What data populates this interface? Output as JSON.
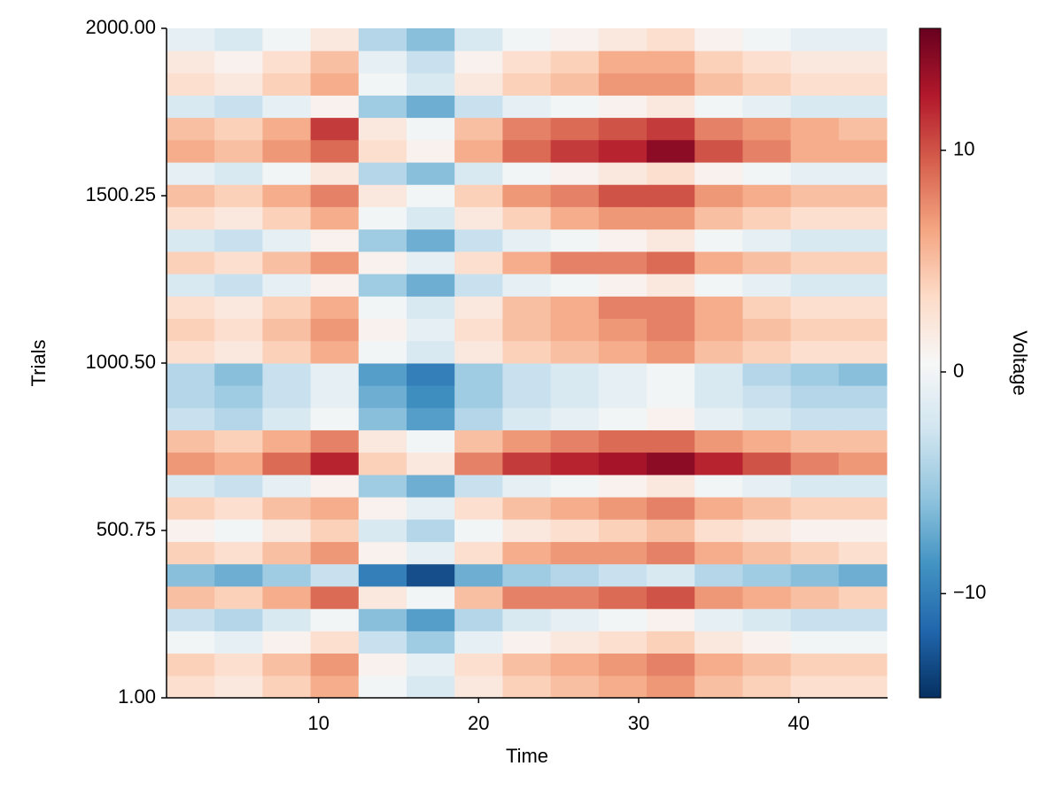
{
  "chart_data": {
    "type": "heatmap",
    "x_label": "Time",
    "y_label": "Trials",
    "colorbar_label": "Voltage",
    "x": [
      2,
      5,
      8,
      11,
      14,
      17,
      20,
      23,
      26,
      29,
      32,
      35,
      38,
      41,
      44
    ],
    "y": [
      34,
      101,
      168,
      234,
      301,
      368,
      434,
      501,
      568,
      634,
      701,
      768,
      834,
      901,
      967,
      1034,
      1101,
      1167,
      1234,
      1301,
      1367,
      1434,
      1501,
      1567,
      1634,
      1701,
      1767,
      1834,
      1900,
      1967
    ],
    "z": [
      [
        3,
        2,
        4,
        6,
        0,
        -2,
        2,
        4,
        5,
        6,
        7,
        5,
        4,
        3,
        3
      ],
      [
        4,
        3,
        5,
        7,
        1,
        -1,
        3,
        5,
        6,
        7,
        8,
        6,
        5,
        4,
        4
      ],
      [
        0,
        -1,
        1,
        3,
        -3,
        -5,
        -1,
        1,
        2,
        3,
        4,
        2,
        1,
        0,
        0
      ],
      [
        -3,
        -4,
        -2,
        0,
        -6,
        -8,
        -4,
        -2,
        -1,
        0,
        1,
        -1,
        -2,
        -3,
        -3
      ],
      [
        5,
        4,
        6,
        9,
        2,
        0,
        5,
        8,
        8,
        9,
        10,
        7,
        6,
        5,
        4
      ],
      [
        -6,
        -7,
        -5,
        -3,
        -10,
        -13,
        -7,
        -5,
        -4,
        -3,
        -2,
        -4,
        -5,
        -6,
        -7
      ],
      [
        4,
        3,
        5,
        7,
        1,
        -1,
        3,
        6,
        7,
        7,
        8,
        6,
        5,
        4,
        3
      ],
      [
        1,
        0,
        2,
        4,
        -2,
        -4,
        0,
        2,
        3,
        4,
        5,
        3,
        2,
        1,
        1
      ],
      [
        4,
        3,
        5,
        6,
        1,
        -1,
        3,
        5,
        6,
        7,
        8,
        6,
        5,
        4,
        4
      ],
      [
        -2,
        -3,
        -1,
        1,
        -5,
        -7,
        -3,
        -1,
        0,
        1,
        2,
        0,
        -1,
        -2,
        -2
      ],
      [
        7,
        6,
        9,
        12,
        4,
        2,
        8,
        11,
        12,
        13,
        14,
        12,
        10,
        8,
        7
      ],
      [
        5,
        4,
        6,
        8,
        2,
        0,
        5,
        7,
        8,
        9,
        9,
        7,
        6,
        5,
        5
      ],
      [
        -3,
        -4,
        -2,
        0,
        -6,
        -8,
        -4,
        -2,
        -1,
        0,
        1,
        -1,
        -2,
        -3,
        -3
      ],
      [
        -4,
        -5,
        -3,
        -1,
        -7,
        -9,
        -5,
        -3,
        -2,
        -1,
        0,
        -2,
        -3,
        -4,
        -4
      ],
      [
        -4,
        -6,
        -3,
        -1,
        -8,
        -10,
        -5,
        -3,
        -2,
        -1,
        0,
        -2,
        -4,
        -5,
        -6
      ],
      [
        3,
        2,
        4,
        6,
        0,
        -2,
        2,
        4,
        5,
        6,
        7,
        5,
        4,
        3,
        3
      ],
      [
        4,
        3,
        5,
        7,
        1,
        -1,
        3,
        5,
        6,
        7,
        8,
        6,
        5,
        4,
        4
      ],
      [
        3,
        2,
        4,
        6,
        0,
        -2,
        2,
        5,
        6,
        8,
        8,
        6,
        4,
        3,
        3
      ],
      [
        -2,
        -3,
        -1,
        1,
        -5,
        -7,
        -3,
        -1,
        0,
        1,
        2,
        0,
        -1,
        -2,
        -2
      ],
      [
        4,
        3,
        5,
        7,
        1,
        -1,
        3,
        6,
        8,
        8,
        9,
        6,
        5,
        4,
        4
      ],
      [
        -2,
        -3,
        -1,
        1,
        -5,
        -7,
        -3,
        -1,
        0,
        1,
        2,
        0,
        -1,
        -2,
        -2
      ],
      [
        3,
        2,
        4,
        6,
        0,
        -2,
        2,
        4,
        6,
        7,
        7,
        5,
        4,
        3,
        3
      ],
      [
        5,
        4,
        6,
        8,
        2,
        0,
        4,
        7,
        8,
        10,
        10,
        7,
        6,
        5,
        5
      ],
      [
        -1,
        -2,
        0,
        2,
        -4,
        -6,
        -2,
        0,
        1,
        2,
        3,
        1,
        0,
        -1,
        -1
      ],
      [
        6,
        5,
        7,
        9,
        3,
        1,
        6,
        9,
        11,
        12,
        14,
        10,
        8,
        6,
        6
      ],
      [
        5,
        4,
        6,
        11,
        2,
        0,
        5,
        8,
        9,
        10,
        11,
        8,
        7,
        6,
        5
      ],
      [
        -2,
        -3,
        -1,
        1,
        -5,
        -7,
        -3,
        -1,
        0,
        1,
        2,
        0,
        -1,
        -2,
        -2
      ],
      [
        3,
        2,
        4,
        6,
        0,
        -2,
        2,
        4,
        5,
        7,
        7,
        5,
        4,
        3,
        3
      ],
      [
        2,
        1,
        3,
        5,
        -1,
        -3,
        1,
        3,
        4,
        6,
        6,
        4,
        3,
        2,
        2
      ],
      [
        -1,
        -2,
        0,
        2,
        -4,
        -6,
        -2,
        0,
        1,
        2,
        3,
        1,
        0,
        -1,
        -1
      ]
    ],
    "xlim": [
      0.5,
      45.5
    ],
    "xticks": [
      10,
      20,
      30,
      40
    ],
    "ylim": [
      1,
      2000
    ],
    "yticks": [
      {
        "value": 1,
        "label": "1.00"
      },
      {
        "value": 500.75,
        "label": "500.75"
      },
      {
        "value": 1000.5,
        "label": "1000.50"
      },
      {
        "value": 1500.25,
        "label": "1500.25"
      },
      {
        "value": 2000,
        "label": "2000.00"
      }
    ],
    "clim": [
      -14.7,
      15.5
    ],
    "cticks": [
      {
        "value": -10,
        "label": "−10"
      },
      0,
      10
    ],
    "colormap": [
      "#053061",
      "#2166ac",
      "#4393c3",
      "#92c5de",
      "#d1e5f0",
      "#f7f7f7",
      "#fddbc7",
      "#f4a582",
      "#d6604d",
      "#b2182b",
      "#67001f"
    ]
  }
}
